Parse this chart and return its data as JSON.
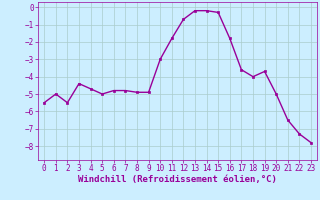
{
  "x": [
    0,
    1,
    2,
    3,
    4,
    5,
    6,
    7,
    8,
    9,
    10,
    11,
    12,
    13,
    14,
    15,
    16,
    17,
    18,
    19,
    20,
    21,
    22,
    23
  ],
  "y": [
    -5.5,
    -5.0,
    -5.5,
    -4.4,
    -4.7,
    -5.0,
    -4.8,
    -4.8,
    -4.9,
    -4.9,
    -3.0,
    -1.8,
    -0.7,
    -0.2,
    -0.2,
    -0.3,
    -1.8,
    -3.6,
    -4.0,
    -3.7,
    -5.0,
    -6.5,
    -7.3,
    -7.8
  ],
  "line_color": "#990099",
  "marker": "s",
  "marker_size": 2.0,
  "line_width": 1.0,
  "bg_color": "#cceeff",
  "grid_color": "#aacccc",
  "xlabel": "Windchill (Refroidissement éolien,°C)",
  "xlabel_fontsize": 6.5,
  "tick_fontsize": 5.5,
  "ylim": [
    -8.8,
    0.3
  ],
  "xlim": [
    -0.5,
    23.5
  ],
  "yticks": [
    0,
    -1,
    -2,
    -3,
    -4,
    -5,
    -6,
    -7,
    -8
  ],
  "xticks": [
    0,
    1,
    2,
    3,
    4,
    5,
    6,
    7,
    8,
    9,
    10,
    11,
    12,
    13,
    14,
    15,
    16,
    17,
    18,
    19,
    20,
    21,
    22,
    23
  ]
}
